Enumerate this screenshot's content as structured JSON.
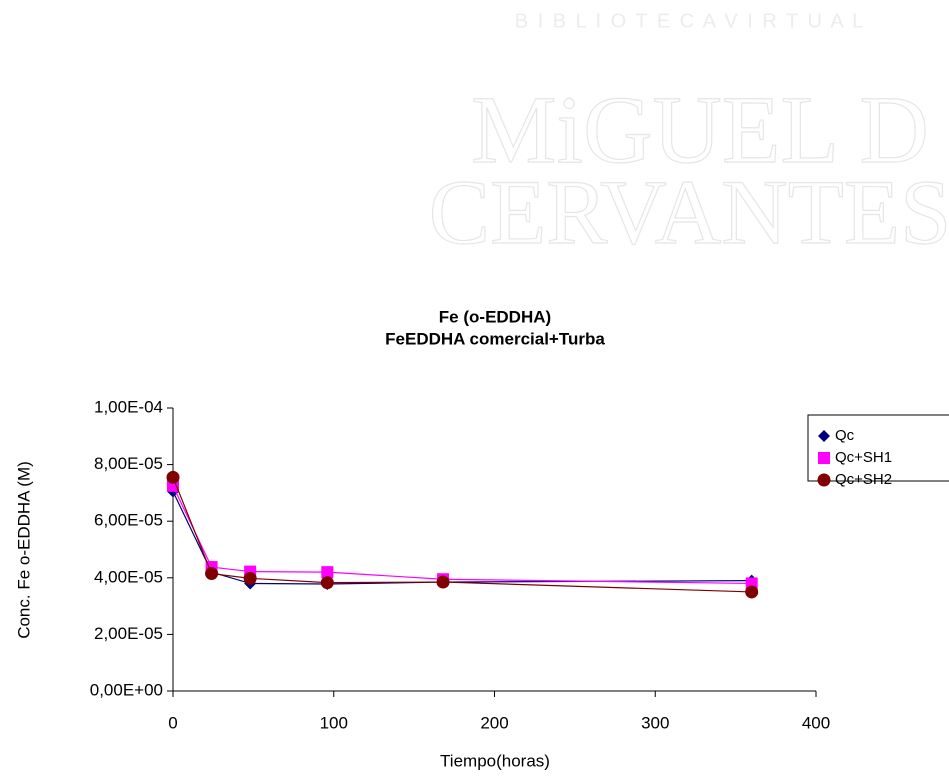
{
  "watermark": {
    "top": "B I B L I O T E C A   V I R T U A L",
    "name1": "MiGUEL D",
    "name2": "CERVANTES"
  },
  "chart_data": {
    "type": "line",
    "title": "Fe (o-EDDHA)",
    "subtitle": "FeEDDHA comercial+Turba",
    "x_label": "Tiempo(horas)",
    "y_label": "Conc. Fe o-EDDHA (M)",
    "x": [
      0,
      24,
      48,
      96,
      168,
      360
    ],
    "series": [
      {
        "name": "Qc",
        "color": "#000080",
        "marker": "diamond",
        "values": [
          7.05e-05,
          4.2e-05,
          3.8e-05,
          3.78e-05,
          3.85e-05,
          3.9e-05
        ]
      },
      {
        "name": "Qc+SH1",
        "color": "#ff00ff",
        "marker": "square",
        "values": [
          7.25e-05,
          4.38e-05,
          4.22e-05,
          4.2e-05,
          3.95e-05,
          3.8e-05
        ]
      },
      {
        "name": "Qc+SH2",
        "color": "#800000",
        "marker": "circle",
        "values": [
          7.55e-05,
          4.15e-05,
          3.98e-05,
          3.83e-05,
          3.85e-05,
          3.5e-05
        ]
      }
    ],
    "xlim": [
      0,
      400
    ],
    "xticks": [
      0,
      100,
      200,
      300,
      400
    ],
    "ylim": [
      0,
      0.0001
    ],
    "yticks": [
      {
        "value": 0,
        "label": "0,00E+00"
      },
      {
        "value": 2e-05,
        "label": "2,00E-05"
      },
      {
        "value": 4e-05,
        "label": "4,00E-05"
      },
      {
        "value": 6e-05,
        "label": "6,00E-05"
      },
      {
        "value": 8e-05,
        "label": "8,00E-05"
      },
      {
        "value": 0.0001,
        "label": "1,00E-04"
      }
    ],
    "grid": false,
    "legend": "right"
  }
}
